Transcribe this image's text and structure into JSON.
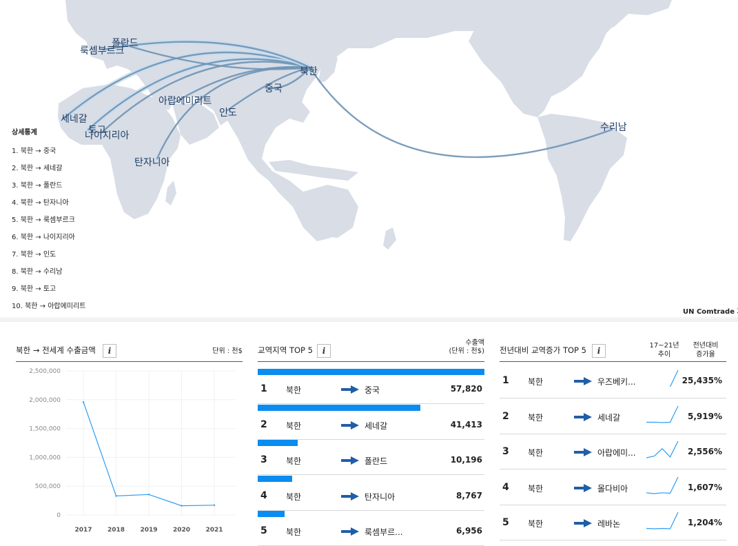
{
  "map": {
    "places": {
      "north_korea": "북한",
      "china": "중국",
      "senegal": "세네갈",
      "poland": "폴란드",
      "tanzania": "탄자니아",
      "luxembourg": "룩셈부르크",
      "nigeria": "나이지리아",
      "india": "인도",
      "suriname": "수리남",
      "togo": "토고",
      "uae": "아랍에미리트"
    },
    "route_color": "#6f93b4",
    "land_color": "#d8dde6"
  },
  "detail_list": {
    "title": "상세통계",
    "items": [
      "1. 북한 → 중국",
      "2. 북한 → 세네갈",
      "3. 북한 → 폴란드",
      "4. 북한 → 탄자니아",
      "5. 북한 → 룩셈부르크",
      "6. 북한 → 나이지리아",
      "7. 북한 → 인도",
      "8. 북한 → 수리남",
      "9. 북한 → 토고",
      "10. 북한 → 아랍에미리트"
    ]
  },
  "source_note": "UN Comtrade 기준",
  "line_panel": {
    "title": "북한 → 전세계 수출금액",
    "info_icon": "i",
    "unit": "단위 : 천$"
  },
  "chart_data": {
    "type": "line",
    "x": [
      "2017",
      "2018",
      "2019",
      "2020",
      "2021"
    ],
    "series": [
      {
        "values": [
          1960000,
          330000,
          355000,
          160000,
          170000
        ]
      }
    ],
    "y_ticks": [
      "2,500,000",
      "2,000,000",
      "1,500,000",
      "1,000,000",
      "500,000",
      "0"
    ],
    "ylim": [
      0,
      2500000
    ],
    "grid": true,
    "color": "#2a9df4"
  },
  "top5_panel": {
    "title": "교역지역 TOP 5",
    "info_icon": "i",
    "unit_line1": "수출액",
    "unit_line2": "(단위 : 천$)",
    "bar_color": "#0a8cf0",
    "rows": [
      {
        "rank": "1",
        "from": "북한",
        "to": "중국",
        "value": "57,820",
        "share": 1.0
      },
      {
        "rank": "2",
        "from": "북한",
        "to": "세네갈",
        "value": "41,413",
        "share": 0.716
      },
      {
        "rank": "3",
        "from": "북한",
        "to": "폴란드",
        "value": "10,196",
        "share": 0.176
      },
      {
        "rank": "4",
        "from": "북한",
        "to": "탄자니아",
        "value": "8,767",
        "share": 0.152
      },
      {
        "rank": "5",
        "from": "북한",
        "to": "룩셈부르...",
        "value": "6,956",
        "share": 0.12
      }
    ]
  },
  "growth_panel": {
    "title": "전년대비 교역증가 TOP 5",
    "info_icon": "i",
    "col_trend_1": "17~21년",
    "col_trend_2": "추이",
    "col_rate_1": "전년대비",
    "col_rate_2": "증가율",
    "rows": [
      {
        "rank": "1",
        "from": "북한",
        "to": "우즈베키...",
        "value": "25,435%",
        "trend": [
          null,
          null,
          null,
          0.0,
          1.0
        ]
      },
      {
        "rank": "2",
        "from": "북한",
        "to": "세네갈",
        "value": "5,919%",
        "trend": [
          0.02,
          0.03,
          0.0,
          0.02,
          1.0
        ]
      },
      {
        "rank": "3",
        "from": "북한",
        "to": "아랍에미...",
        "value": "2,556%",
        "trend": [
          0.0,
          0.1,
          0.55,
          0.05,
          1.0
        ]
      },
      {
        "rank": "4",
        "from": "북한",
        "to": "몰다비아",
        "value": "1,607%",
        "trend": [
          0.05,
          0.0,
          0.05,
          0.02,
          1.0
        ]
      },
      {
        "rank": "5",
        "from": "북한",
        "to": "레바논",
        "value": "1,204%",
        "trend": [
          0.02,
          0.0,
          0.02,
          0.0,
          1.0
        ]
      }
    ]
  }
}
